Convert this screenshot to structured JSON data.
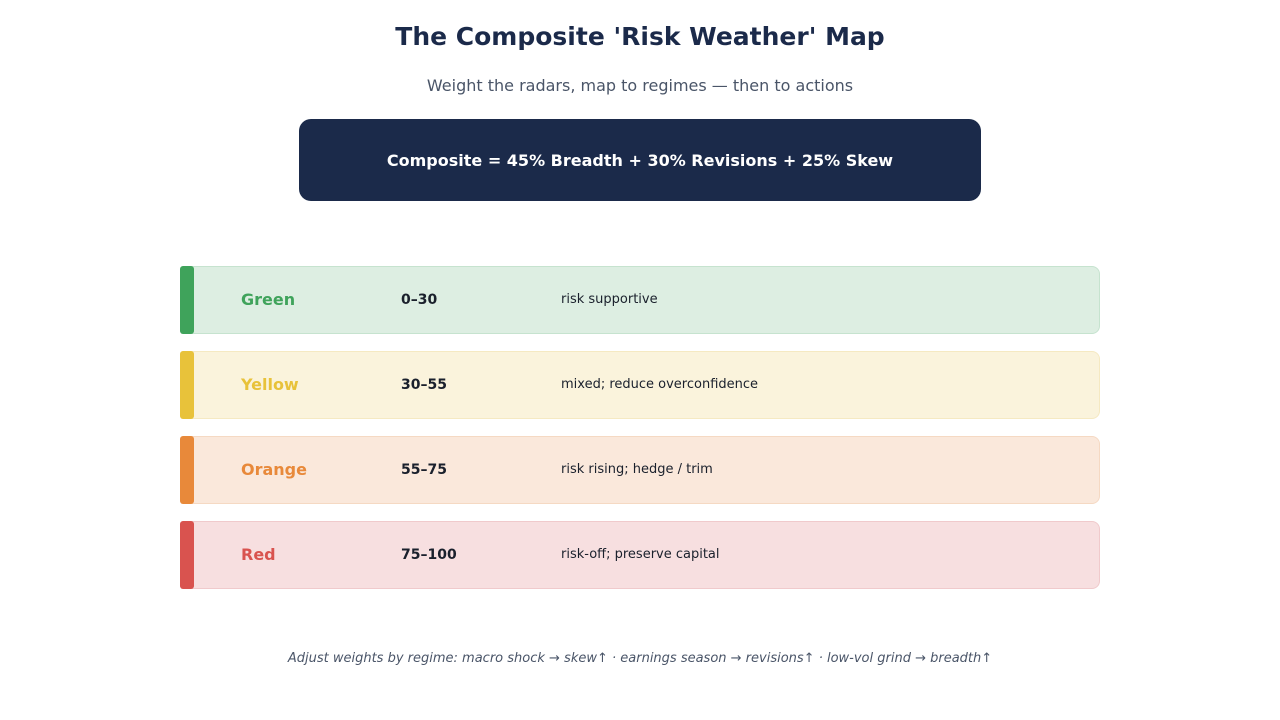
{
  "title": "The Composite 'Risk Weather' Map",
  "subtitle": "Weight the radars, map to regimes — then to actions",
  "formula": "Composite = 45% Breadth + 30% Revisions + 25% Skew",
  "regimes": [
    {
      "name": "Green",
      "range": "0–30",
      "action": "risk supportive",
      "accent": "#3fa35b",
      "bg": "#ddeee2",
      "border": "#c6e3cf"
    },
    {
      "name": "Yellow",
      "range": "30–55",
      "action": "mixed; reduce overconfidence",
      "accent": "#e8c23a",
      "bg": "#faf3dc",
      "border": "#f5e9c2"
    },
    {
      "name": "Orange",
      "range": "55–75",
      "action": "risk rising; hedge / trim",
      "accent": "#e8893a",
      "bg": "#fae8db",
      "border": "#f5d9c3"
    },
    {
      "name": "Red",
      "range": "75–100",
      "action": "risk-off; preserve capital",
      "accent": "#d9534f",
      "bg": "#f7dfe0",
      "border": "#f0cacc"
    }
  ],
  "footnote": "Adjust weights by regime: macro shock → skew↑ · earnings season → revisions↑ · low-vol grind → breadth↑"
}
